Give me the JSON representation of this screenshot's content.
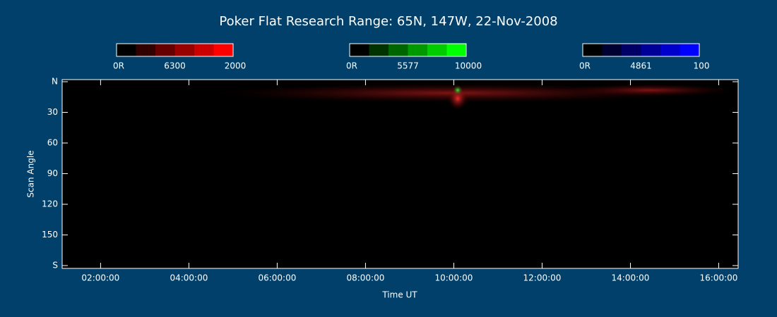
{
  "chart_data": {
    "type": "heatmap",
    "title": "Poker Flat Research Range: 65N, 147W, 22-Nov-2008",
    "xlabel": "Time UT",
    "ylabel": "Scan Angle",
    "xlim": [
      1.13,
      16.44
    ],
    "xticks": [
      {
        "value": 2,
        "label": "02:00:00"
      },
      {
        "value": 4,
        "label": "04:00:00"
      },
      {
        "value": 6,
        "label": "06:00:00"
      },
      {
        "value": 8,
        "label": "08:00:00"
      },
      {
        "value": 10,
        "label": "10:00:00"
      },
      {
        "value": 12,
        "label": "12:00:00"
      },
      {
        "value": 14,
        "label": "14:00:00"
      },
      {
        "value": 16,
        "label": "16:00:00"
      }
    ],
    "ylim": [
      0,
      180
    ],
    "yticks": [
      {
        "value": 0,
        "label": "N"
      },
      30,
      60,
      90,
      120,
      150,
      {
        "value": 180,
        "label": "S"
      }
    ],
    "colorbars": [
      {
        "name": "6300",
        "color": "#ff0000",
        "ticks": [
          {
            "value": 0,
            "label": "0R"
          },
          2000
        ]
      },
      {
        "name": "5577",
        "color": "#00ff00",
        "ticks": [
          {
            "value": 0,
            "label": "0R"
          },
          10000
        ]
      },
      {
        "name": "4861",
        "color": "#0000ff",
        "ticks": [
          {
            "value": 0,
            "label": "0R"
          },
          100
        ]
      }
    ]
  }
}
